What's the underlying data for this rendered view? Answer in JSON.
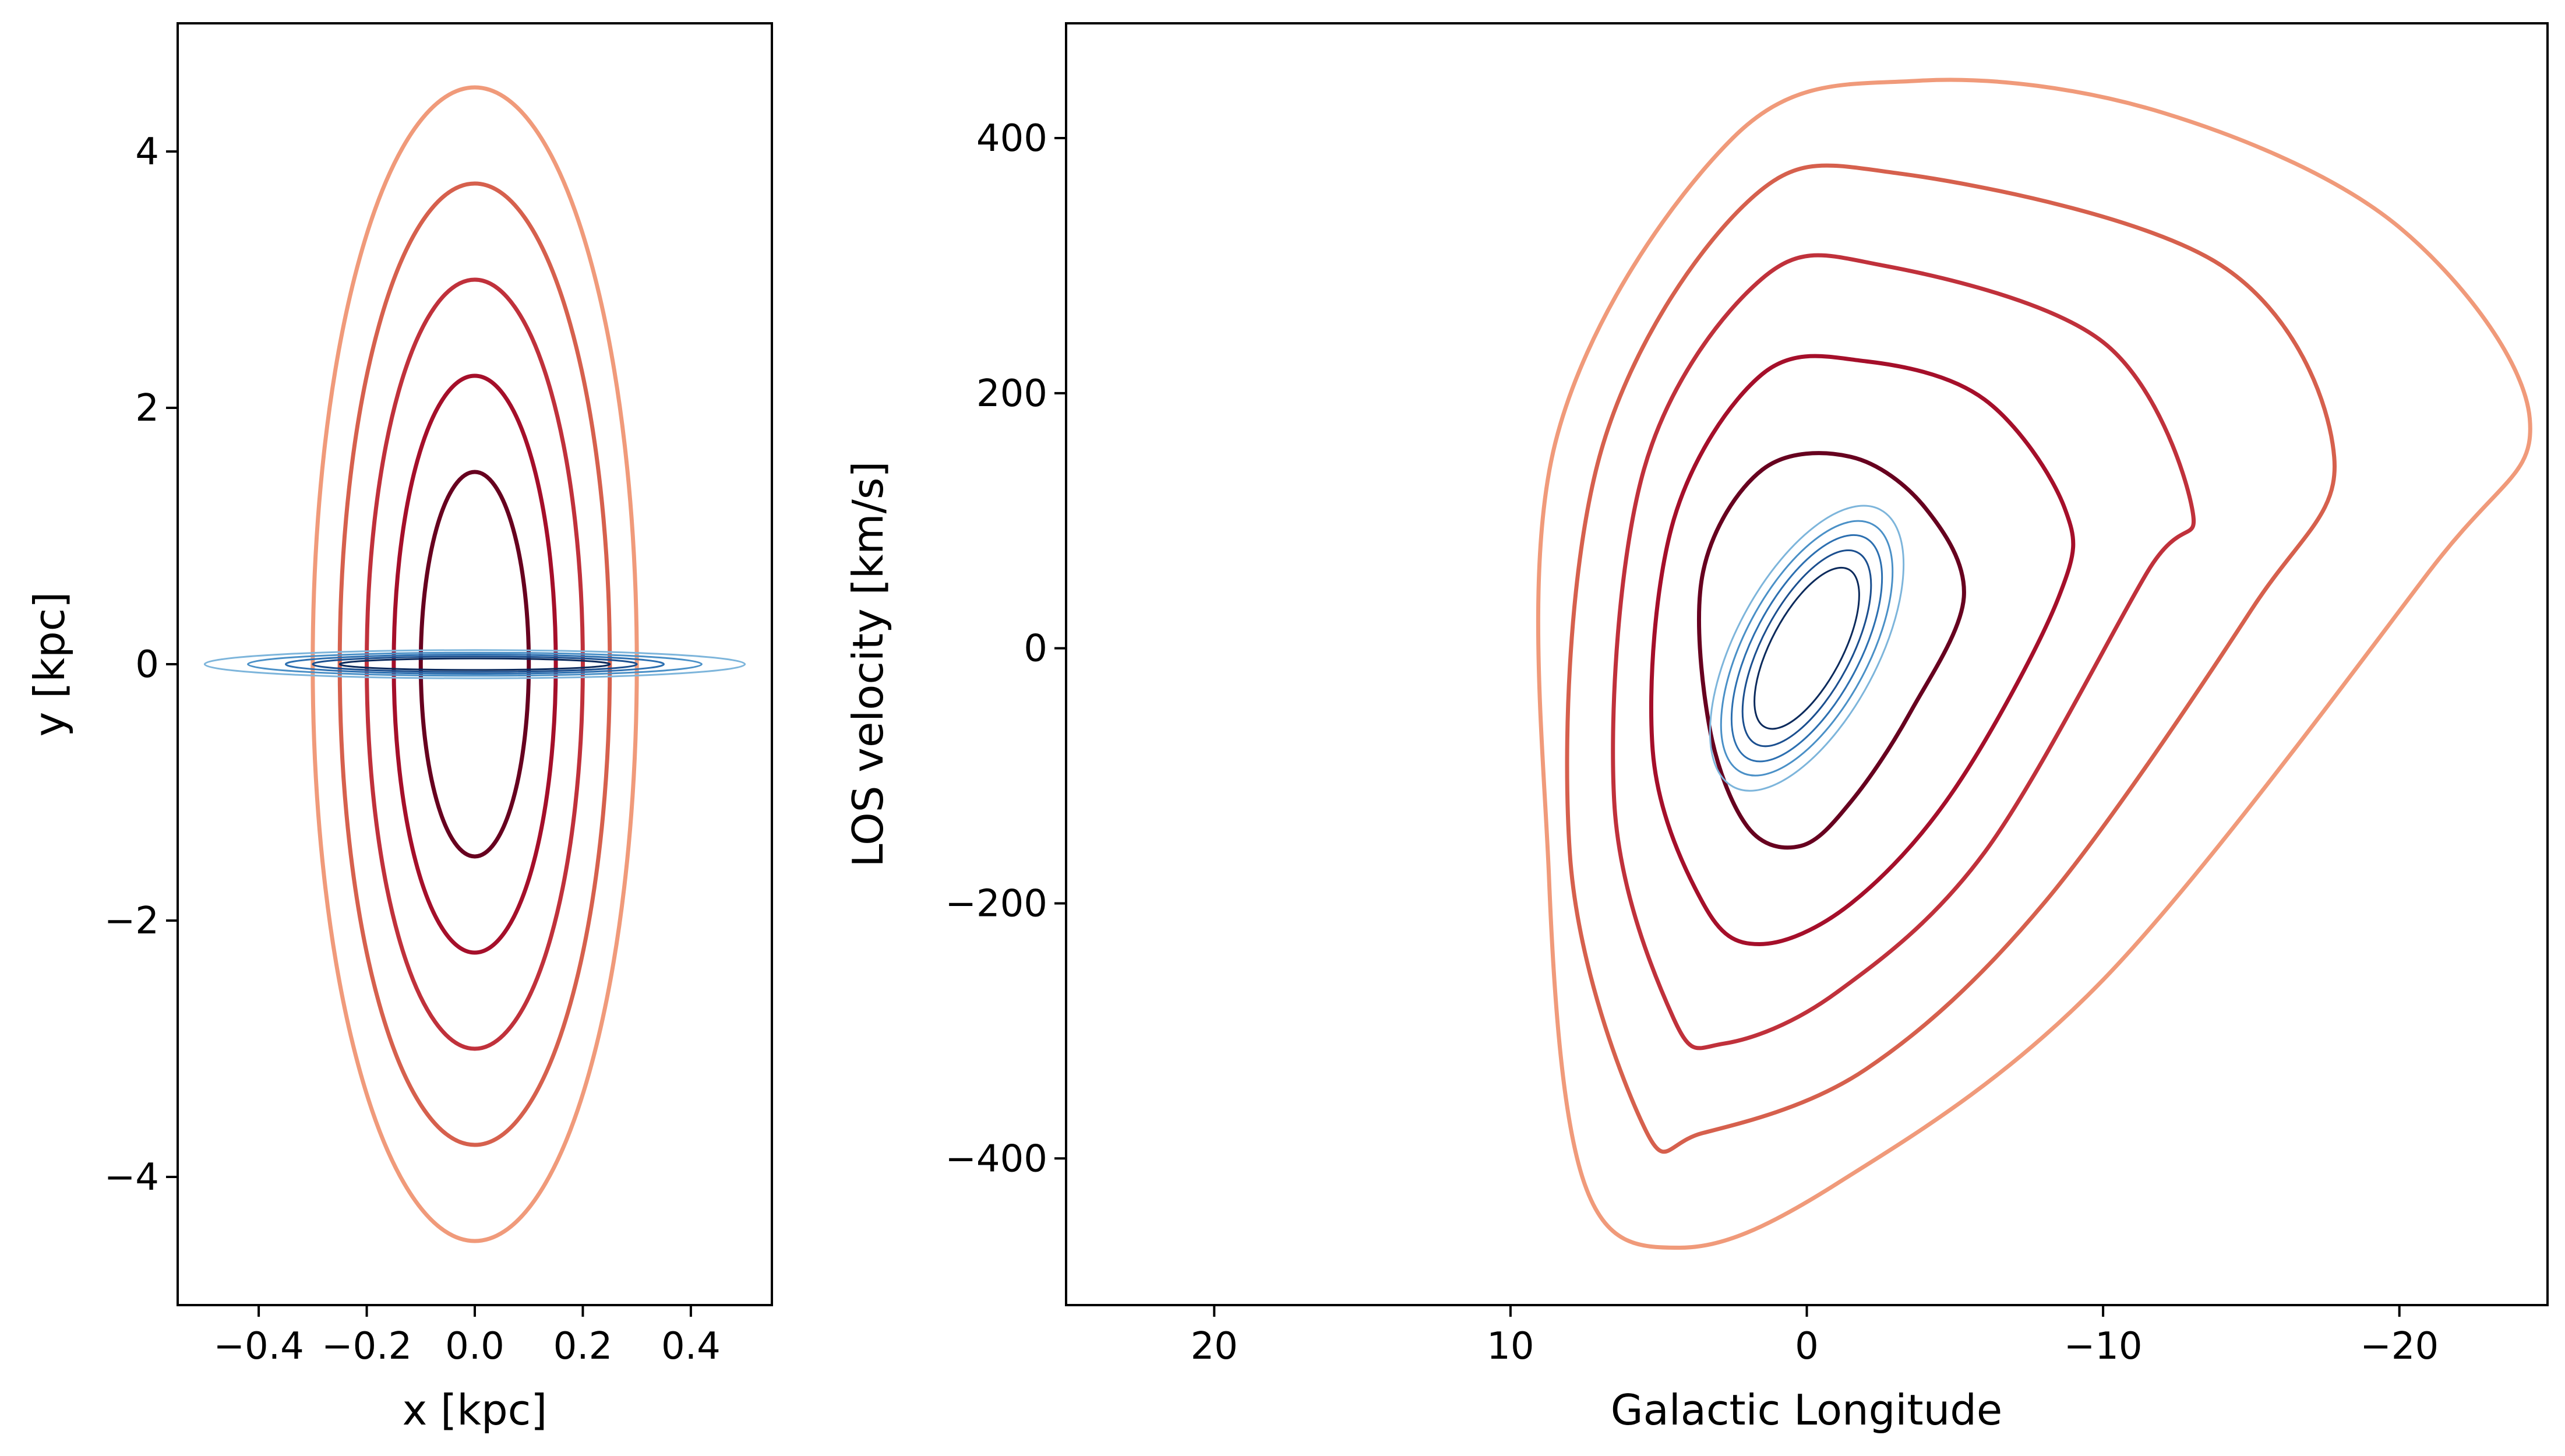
{
  "chart_data": [
    {
      "type": "contour",
      "xlabel": "x [kpc]",
      "ylabel": "y [kpc]",
      "xlim": [
        -0.55,
        0.55
      ],
      "ylim": [
        -5,
        5
      ],
      "xticks": [
        -0.4,
        -0.2,
        0.0,
        0.2,
        0.4
      ],
      "xtick_labels": [
        "−0.4",
        "−0.2",
        "0.0",
        "0.2",
        "0.4"
      ],
      "yticks": [
        -4,
        -2,
        0,
        2,
        4
      ],
      "ytick_labels": [
        "−4",
        "−2",
        "0",
        "2",
        "4"
      ],
      "series": [
        {
          "colormap": "Reds",
          "contours": [
            {
              "color": "#67001f",
              "rx": 0.1,
              "ry": 1.5
            },
            {
              "color": "#a50f2a",
              "rx": 0.15,
              "ry": 2.25
            },
            {
              "color": "#c0313b",
              "rx": 0.2,
              "ry": 3.0
            },
            {
              "color": "#d6604d",
              "rx": 0.25,
              "ry": 3.75
            },
            {
              "color": "#f09a7a",
              "rx": 0.3,
              "ry": 4.5
            }
          ]
        },
        {
          "colormap": "Blues",
          "contours": [
            {
              "color": "#0b2a5c",
              "rx": 0.25,
              "ry": 0.045
            },
            {
              "color": "#1b4f8f",
              "rx": 0.3,
              "ry": 0.06
            },
            {
              "color": "#2c6fb0",
              "rx": 0.35,
              "ry": 0.075
            },
            {
              "color": "#4a90c7",
              "rx": 0.42,
              "ry": 0.09
            },
            {
              "color": "#7db5db",
              "rx": 0.5,
              "ry": 0.11
            }
          ]
        }
      ]
    },
    {
      "type": "contour",
      "xlabel": "Galactic Longitude",
      "ylabel": "LOS velocity [km/s]",
      "xlim": [
        25,
        -25
      ],
      "ylim": [
        -515,
        490
      ],
      "xticks": [
        20,
        10,
        0,
        -10,
        -20
      ],
      "xtick_labels": [
        "20",
        "10",
        "0",
        "−10",
        "−20"
      ],
      "yticks": [
        -400,
        -200,
        0,
        200,
        400
      ],
      "ytick_labels": [
        "−400",
        "−200",
        "0",
        "200",
        "400"
      ],
      "series": [
        {
          "colormap": "Reds",
          "contours": [
            {
              "color": "#67001f",
              "points": [
                [
                  -1.5,
                  150
                ],
                [
                  1.5,
                  140
                ],
                [
                  3.5,
                  60
                ],
                [
                  3.3,
                  -60
                ],
                [
                  2.0,
                  -140
                ],
                [
                  0.2,
                  -155
                ],
                [
                  -1.5,
                  -120
                ],
                [
                  -3.5,
                  -50
                ],
                [
                  -5.3,
                  40
                ],
                [
                  -4,
                  110
                ]
              ]
            },
            {
              "color": "#a50f2a",
              "points": [
                [
                  -2,
                  225
                ],
                [
                  1.5,
                  215
                ],
                [
                  4.5,
                  100
                ],
                [
                  5.2,
                  -80
                ],
                [
                  3.5,
                  -200
                ],
                [
                  1.6,
                  -232
                ],
                [
                  -1.5,
                  -200
                ],
                [
                  -5,
                  -110
                ],
                [
                  -8.5,
                  40
                ],
                [
                  -8.7,
                  110
                ],
                [
                  -6,
                  195
                ]
              ]
            },
            {
              "color": "#c0313b",
              "points": [
                [
                  -2.6,
                  300
                ],
                [
                  1.5,
                  290
                ],
                [
                  5.5,
                  140
                ],
                [
                  6.5,
                  -120
                ],
                [
                  4.5,
                  -290
                ],
                [
                  2.8,
                  -310
                ],
                [
                  -1,
                  -270
                ],
                [
                  -6,
                  -160
                ],
                [
                  -11.5,
                  60
                ],
                [
                  -13,
                  110
                ],
                [
                  -10,
                  240
                ]
              ]
            },
            {
              "color": "#d6604d",
              "points": [
                [
                  -3.2,
                  372
                ],
                [
                  2,
                  350
                ],
                [
                  7,
                  150
                ],
                [
                  8,
                  -160
                ],
                [
                  5.5,
                  -375
                ],
                [
                  3.5,
                  -380
                ],
                [
                  -2,
                  -330
                ],
                [
                  -8,
                  -200
                ],
                [
                  -15,
                  30
                ],
                [
                  -17.8,
                  150
                ],
                [
                  -14,
                  300
                ]
              ]
            },
            {
              "color": "#f09a7a",
              "points": [
                [
                  -3.8,
                  445
                ],
                [
                  2.5,
                  400
                ],
                [
                  8.5,
                  160
                ],
                [
                  8.7,
                  -180
                ],
                [
                  7.5,
                  -420
                ],
                [
                  4.3,
                  -470
                ],
                [
                  -1,
                  -420
                ],
                [
                  -10,
                  -260
                ],
                [
                  -21,
                  60
                ],
                [
                  -24.4,
                  180
                ],
                [
                  -20,
                  330
                ],
                [
                  -12,
                  420
                ]
              ]
            }
          ]
        },
        {
          "colormap": "Blues",
          "contours": [
            {
              "color": "#0b2a5c",
              "rx": 1.2,
              "ry": 70
            },
            {
              "color": "#1b4f8f",
              "rx": 1.5,
              "ry": 85
            },
            {
              "color": "#2c6fb0",
              "rx": 1.8,
              "ry": 98
            },
            {
              "color": "#4a90c7",
              "rx": 2.1,
              "ry": 110
            },
            {
              "color": "#7db5db",
              "rx": 2.4,
              "ry": 123
            }
          ]
        }
      ]
    }
  ]
}
